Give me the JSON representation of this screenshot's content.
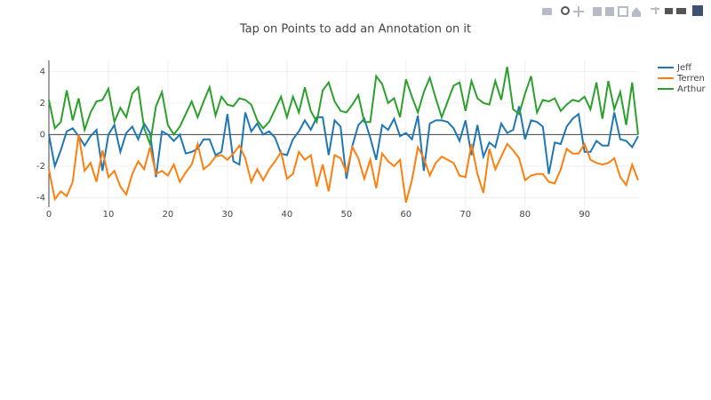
{
  "chart_data": {
    "type": "line",
    "title": "Tap on Points to add an Annotation on it",
    "x": [
      0,
      1,
      2,
      3,
      4,
      5,
      6,
      7,
      8,
      9,
      10,
      11,
      12,
      13,
      14,
      15,
      16,
      17,
      18,
      19,
      20,
      21,
      22,
      23,
      24,
      25,
      26,
      27,
      28,
      29,
      30,
      31,
      32,
      33,
      34,
      35,
      36,
      37,
      38,
      39,
      40,
      41,
      42,
      43,
      44,
      45,
      46,
      47,
      48,
      49,
      50,
      51,
      52,
      53,
      54,
      55,
      56,
      57,
      58,
      59,
      60,
      61,
      62,
      63,
      64,
      65,
      66,
      67,
      68,
      69,
      70,
      71,
      72,
      73,
      74,
      75,
      76,
      77,
      78,
      79,
      80,
      81,
      82,
      83,
      84,
      85,
      86,
      87,
      88,
      89,
      90,
      91,
      92,
      93,
      94,
      95,
      96,
      97,
      98,
      99
    ],
    "xlim": [
      0,
      99
    ],
    "xticks": [
      0,
      10,
      20,
      30,
      40,
      50,
      60,
      70,
      80,
      90
    ],
    "ylim": [
      -4.6,
      4.7
    ],
    "yticks": [
      -4,
      -2,
      0,
      2,
      4
    ],
    "grid": true,
    "zeroline": true,
    "series": [
      {
        "name": "Jeff",
        "color": "#1f77b4",
        "values": [
          0,
          -2,
          -1,
          0.2,
          0.4,
          -0.1,
          -0.7,
          -0.1,
          0.3,
          -2.3,
          0,
          0.6,
          -1.1,
          0.1,
          0.5,
          -0.3,
          0.7,
          0.1,
          -2.7,
          0.2,
          0,
          -0.4,
          0,
          -1.2,
          -1.1,
          -0.9,
          -0.3,
          -0.3,
          -1.3,
          -1.1,
          1.3,
          -1.7,
          -1.9,
          1.4,
          0.2,
          0.7,
          0,
          0.2,
          -0.2,
          -1.2,
          -1.3,
          -0.3,
          0.2,
          0.9,
          0.3,
          1.1,
          1.1,
          -1.3,
          0.9,
          0.5,
          -2.8,
          -0.7,
          0.6,
          1,
          -0.2,
          -1.6,
          0.6,
          0.3,
          1,
          -0.1,
          0.1,
          -0.3,
          1.2,
          -2.3,
          0.7,
          0.9,
          0.9,
          0.8,
          0.4,
          -0.4,
          0.9,
          -1.3,
          0.6,
          -1.4,
          -0.5,
          -0.8,
          0.7,
          0.1,
          0.3,
          1.8,
          -0.3,
          0.9,
          0.8,
          0.5,
          -2.5,
          -0.5,
          -0.6,
          0.5,
          1,
          1.3,
          -1.1,
          -1.1,
          -0.4,
          -0.7,
          -0.7,
          1.4,
          -0.3,
          -0.4,
          -0.8,
          -0.1
        ]
      },
      {
        "name": "Terren",
        "color": "#ff7f0e",
        "values": [
          -2.2,
          -4.1,
          -3.6,
          -3.9,
          -3,
          0,
          -2.3,
          -1.8,
          -3,
          -1,
          -2.7,
          -2.3,
          -3.3,
          -3.8,
          -2.5,
          -1.7,
          -2.2,
          -0.8,
          -2.5,
          -2.3,
          -2.6,
          -1.9,
          -3,
          -2.4,
          -1.9,
          -0.6,
          -2.2,
          -1.9,
          -1.4,
          -1.3,
          -1.6,
          -1.2,
          -0.7,
          -1.5,
          -3,
          -2.2,
          -2.9,
          -2.2,
          -1.7,
          -1.1,
          -2.8,
          -2.5,
          -1.1,
          -1.6,
          -1.3,
          -3.3,
          -1.9,
          -3.6,
          -1.3,
          -1.5,
          -2.4,
          -0.8,
          -1.5,
          -2.8,
          -1.6,
          -3.4,
          -1.2,
          -1.7,
          -2,
          -1.6,
          -4.3,
          -2.9,
          -0.8,
          -1.5,
          -2.6,
          -1.8,
          -1.4,
          -1.6,
          -1.8,
          -2.6,
          -2.7,
          -0.6,
          -2.5,
          -3.7,
          -0.9,
          -2.2,
          -1.4,
          -0.6,
          -1,
          -1.5,
          -2.9,
          -2.6,
          -2.5,
          -2.5,
          -3,
          -3.1,
          -2.2,
          -0.9,
          -1.2,
          -1.2,
          -0.6,
          -1.6,
          -1.8,
          -1.9,
          -1.8,
          -1.5,
          -2.7,
          -3.2,
          -1.9,
          -2.9
        ]
      },
      {
        "name": "Arthur",
        "color": "#2ca02c",
        "values": [
          2.2,
          0.4,
          0.8,
          2.8,
          0.9,
          2.3,
          0.3,
          1.4,
          2.1,
          2.2,
          2.9,
          0.8,
          1.7,
          1.1,
          2.6,
          3,
          0.4,
          -0.6,
          1.8,
          2.7,
          0.6,
          0,
          0.5,
          1.3,
          2.1,
          1.1,
          2.1,
          3,
          1.2,
          2.4,
          1.9,
          1.8,
          2.3,
          2.2,
          1.9,
          0.9,
          0.4,
          0.8,
          1.6,
          2.4,
          1.1,
          2.4,
          1.4,
          3,
          1.5,
          0.8,
          2.8,
          3.3,
          2.1,
          1.5,
          1.4,
          1.9,
          2.5,
          0.8,
          0.8,
          3.7,
          3.2,
          2,
          2.3,
          1.1,
          3.5,
          2.4,
          1.4,
          2.7,
          3.6,
          2.3,
          1.1,
          2.1,
          3.1,
          3.3,
          1.5,
          3.4,
          2.3,
          2,
          1.9,
          3.4,
          2.2,
          4.3,
          1.6,
          1.3,
          2.6,
          3.7,
          1.4,
          2.2,
          2.1,
          2.3,
          1.5,
          1.9,
          2.2,
          2.1,
          2.4,
          1.6,
          3.3,
          1,
          3.4,
          1.6,
          2.7,
          0.6,
          3.3,
          0
        ]
      }
    ]
  }
}
